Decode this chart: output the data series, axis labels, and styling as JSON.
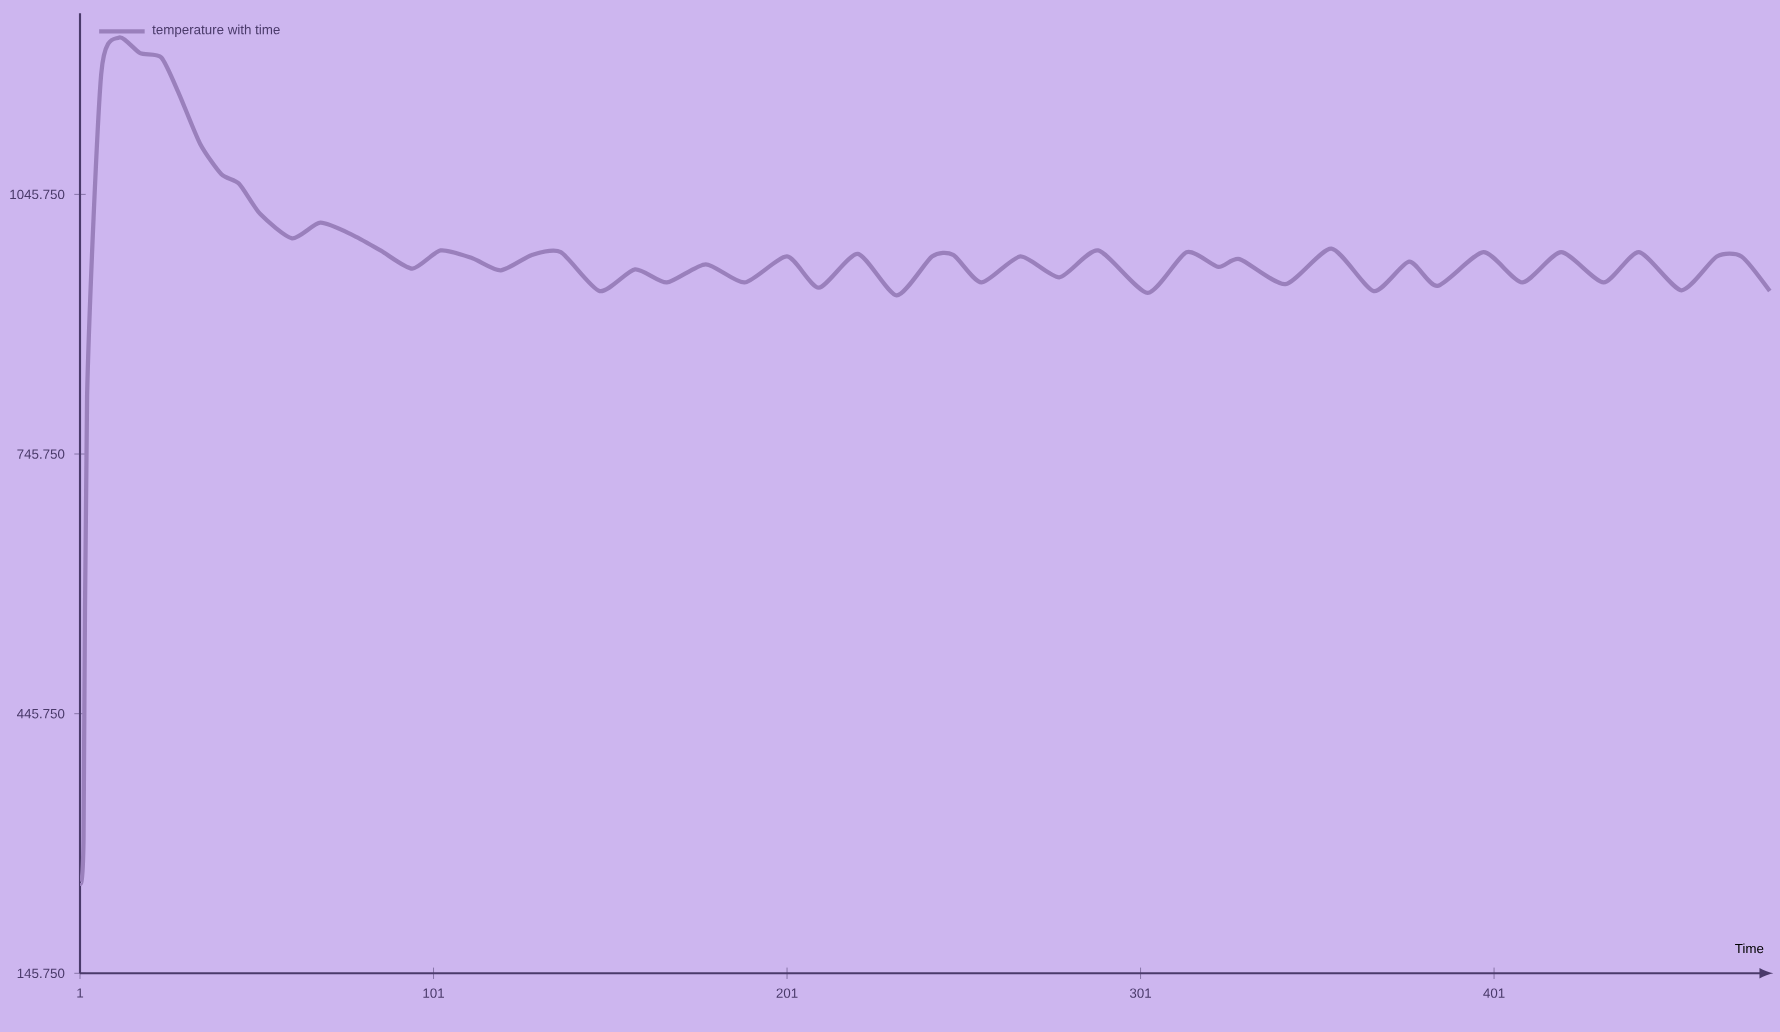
{
  "chart_data": {
    "type": "line",
    "xlabel": "Time",
    "x": [
      1,
      2,
      3,
      7,
      12,
      18,
      24,
      29,
      35,
      41,
      46,
      52,
      61,
      69,
      78,
      86,
      95,
      103,
      112,
      120,
      129,
      137,
      148,
      158,
      167,
      178,
      189,
      201,
      210,
      221,
      232,
      242,
      248,
      256,
      267,
      278,
      289,
      303,
      314,
      323,
      329,
      342,
      355,
      367,
      377,
      385,
      398,
      409,
      420,
      432,
      442,
      454,
      464,
      471,
      479
    ],
    "series": [
      {
        "name": "temperature with time",
        "color": "#9a80bc",
        "values": [
          250,
          301,
          813,
          1185,
          1227,
          1209,
          1204,
          1162,
          1104,
          1069,
          1058,
          1023,
          995,
          1013,
          999,
          981,
          960,
          981,
          972,
          958,
          976,
          979,
          934,
          959,
          944,
          965,
          944,
          974,
          938,
          977,
          929,
          974,
          976,
          944,
          974,
          950,
          981,
          932,
          979,
          962,
          971,
          942,
          983,
          934,
          968,
          940,
          979,
          944,
          979,
          944,
          979,
          935,
          974,
          974,
          934
        ]
      }
    ],
    "xlim": [
      1,
      480
    ],
    "ylim": [
      145.75,
      1255
    ],
    "xticks": [
      1,
      101,
      201,
      301,
      401
    ],
    "yticks": [
      {
        "value": 145.75,
        "label": "145.750"
      },
      {
        "value": 445.75,
        "label": "445.750"
      },
      {
        "value": 745.75,
        "label": "745.750"
      },
      {
        "value": 1045.75,
        "label": "1045.750"
      }
    ],
    "grid": false,
    "legend": "top left",
    "marker": "none",
    "line_style": "solid"
  }
}
